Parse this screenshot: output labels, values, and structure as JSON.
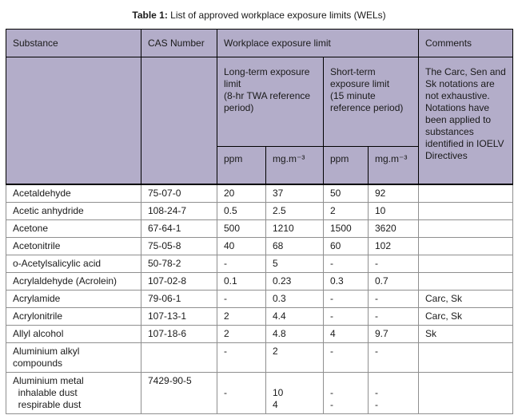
{
  "title": {
    "bold": "Table 1:",
    "rest": " List of approved workplace exposure limits (WELs)"
  },
  "colors": {
    "header_bg": "#b3adc9"
  },
  "table": {
    "header": {
      "substance": "Substance",
      "cas_number": "CAS Number",
      "workplace_exposure_limit": "Workplace exposure limit",
      "comments": "Comments",
      "long_term": "Long-term exposure limit\n(8-hr TWA reference period)",
      "short_term": "Short-term exposure limit\n(15 minute reference period)",
      "lt_ppm": "ppm",
      "lt_mg": "mg.m⁻³",
      "st_ppm": "ppm",
      "st_mg": "mg.m⁻³",
      "comments_note": "The Carc, Sen and Sk notations are not exhaustive. Notations have been applied to substances identified in IOELV Directives"
    },
    "rows": [
      {
        "substance": "Acetaldehyde",
        "cas": "75-07-0",
        "lt_ppm": "20",
        "lt_mg": "37",
        "st_ppm": "50",
        "st_mg": "92",
        "comments": ""
      },
      {
        "substance": "Acetic anhydride",
        "cas": "108-24-7",
        "lt_ppm": "0.5",
        "lt_mg": "2.5",
        "st_ppm": "2",
        "st_mg": "10",
        "comments": ""
      },
      {
        "substance": "Acetone",
        "cas": "67-64-1",
        "lt_ppm": "500",
        "lt_mg": "1210",
        "st_ppm": "1500",
        "st_mg": "3620",
        "comments": ""
      },
      {
        "substance": "Acetonitrile",
        "cas": "75-05-8",
        "lt_ppm": "40",
        "lt_mg": "68",
        "st_ppm": "60",
        "st_mg": "102",
        "comments": ""
      },
      {
        "substance": "o-Acetylsalicylic acid",
        "cas": "50-78-2",
        "lt_ppm": "-",
        "lt_mg": "5",
        "st_ppm": "-",
        "st_mg": "-",
        "comments": ""
      },
      {
        "substance": "Acrylaldehyde (Acrolein)",
        "cas": "107-02-8",
        "lt_ppm": "0.1",
        "lt_mg": "0.23",
        "st_ppm": "0.3",
        "st_mg": "0.7",
        "comments": ""
      },
      {
        "substance": "Acrylamide",
        "cas": "79-06-1",
        "lt_ppm": "-",
        "lt_mg": "0.3",
        "st_ppm": "-",
        "st_mg": "-",
        "comments": "Carc, Sk"
      },
      {
        "substance": "Acrylonitrile",
        "cas": "107-13-1",
        "lt_ppm": "2",
        "lt_mg": "4.4",
        "st_ppm": "-",
        "st_mg": "-",
        "comments": "Carc, Sk"
      },
      {
        "substance": "Allyl alcohol",
        "cas": "107-18-6",
        "lt_ppm": "2",
        "lt_mg": "4.8",
        "st_ppm": "4",
        "st_mg": "9.7",
        "comments": "Sk"
      },
      {
        "substance": "Aluminium alkyl\ncompounds",
        "cas": "",
        "lt_ppm": "-",
        "lt_mg": "2",
        "st_ppm": "-",
        "st_mg": "-",
        "comments": ""
      },
      {
        "substance": "Aluminium metal\n  inhalable dust\n  respirable dust",
        "cas": "7429-90-5",
        "lt_ppm": "\n-",
        "lt_mg": "\n10\n4",
        "st_ppm": "\n-\n-",
        "st_mg": "\n-\n-",
        "comments": ""
      }
    ]
  }
}
